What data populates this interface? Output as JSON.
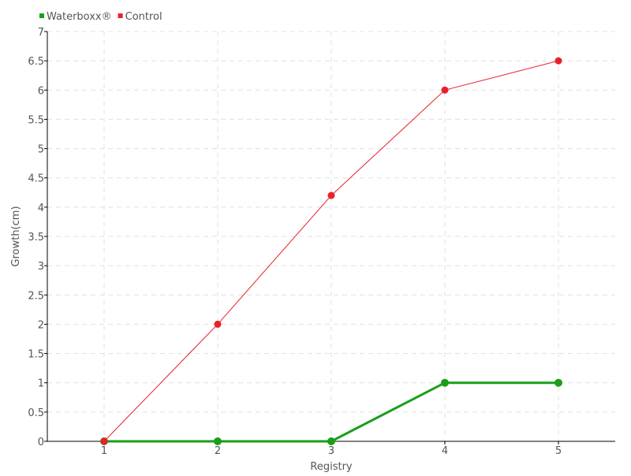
{
  "chart_data": {
    "type": "line",
    "title": "",
    "xlabel": "Registry",
    "ylabel": "Growth(cm)",
    "x": [
      1,
      2,
      3,
      4,
      5
    ],
    "xlim": [
      0.5,
      5.5
    ],
    "ylim": [
      0,
      7
    ],
    "yticks": [
      0,
      0.5,
      1,
      1.5,
      2,
      2.5,
      3,
      3.5,
      4,
      4.5,
      5,
      5.5,
      6,
      6.5,
      7
    ],
    "grid": true,
    "legend_position": "top-left",
    "series": [
      {
        "name": "Waterboxx®",
        "color": "#1a9e1a",
        "values": [
          0,
          0,
          0,
          1,
          1
        ]
      },
      {
        "name": "Control",
        "color": "#e8202a",
        "values": [
          0,
          2,
          4.2,
          6,
          6.5
        ]
      }
    ]
  }
}
